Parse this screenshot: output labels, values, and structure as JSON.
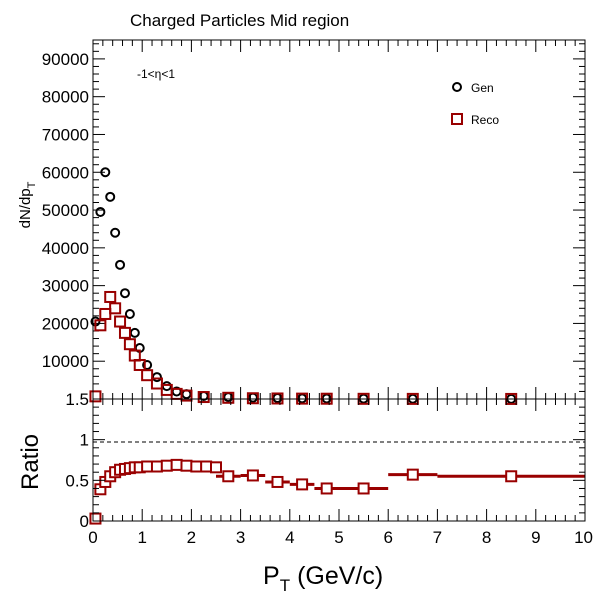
{
  "chart_data": [
    {
      "type": "scatter",
      "title": "Charged Particles Mid region",
      "annotation": "-1<η<1",
      "xlim": [
        0,
        10
      ],
      "ylim": [
        0,
        95000
      ],
      "ylabel": "dN/dp",
      "ylabel_sub": "T",
      "yticks": [
        {
          "v": 0,
          "label": "0"
        },
        {
          "v": 10000,
          "label": "10000"
        },
        {
          "v": 20000,
          "label": "20000"
        },
        {
          "v": 30000,
          "label": "30000"
        },
        {
          "v": 40000,
          "label": "40000"
        },
        {
          "v": 50000,
          "label": "50000"
        },
        {
          "v": 60000,
          "label": "60000"
        },
        {
          "v": 70000,
          "label": "70000"
        },
        {
          "v": 80000,
          "label": "80000"
        },
        {
          "v": 90000,
          "label": "90000"
        }
      ],
      "legend": [
        {
          "label": "Gen",
          "marker": "circle",
          "color": "#000000"
        },
        {
          "label": "Reco",
          "marker": "square",
          "color": "#990000"
        }
      ],
      "series": [
        {
          "name": "Gen",
          "marker": "circle",
          "color": "#000000",
          "x": [
            0.05,
            0.15,
            0.25,
            0.35,
            0.45,
            0.55,
            0.65,
            0.75,
            0.85,
            0.95,
            1.1,
            1.3,
            1.5,
            1.7,
            1.9,
            2.25,
            2.75,
            3.25,
            3.75,
            4.25,
            4.75,
            5.5,
            6.5,
            8.5
          ],
          "y": [
            20500,
            49500,
            60000,
            53500,
            44000,
            35500,
            28000,
            22500,
            17500,
            13500,
            9000,
            5800,
            3400,
            2000,
            1300,
            800,
            500,
            350,
            250,
            180,
            130,
            90,
            50,
            25
          ]
        },
        {
          "name": "Reco",
          "marker": "square",
          "color": "#990000",
          "x": [
            0.05,
            0.15,
            0.25,
            0.35,
            0.45,
            0.55,
            0.65,
            0.75,
            0.85,
            0.95,
            1.1,
            1.3,
            1.5,
            1.7,
            1.9,
            2.25,
            2.75,
            3.25,
            3.75,
            4.25,
            4.75,
            5.5,
            6.5,
            8.5
          ],
          "y": [
            700,
            19500,
            22500,
            27000,
            24000,
            20500,
            17500,
            14500,
            11500,
            9000,
            6300,
            4100,
            2400,
            1350,
            900,
            520,
            320,
            200,
            140,
            100,
            75,
            50,
            30,
            15
          ]
        }
      ]
    },
    {
      "type": "scatter",
      "xlabel": "P",
      "xlabel_sub": "T",
      "xlabel_unit": "(GeV/c)",
      "ylabel": "Ratio",
      "xlim": [
        0,
        10
      ],
      "ylim": [
        0,
        1.5
      ],
      "reference_line": 1,
      "xticks": [
        {
          "v": 0,
          "label": "0"
        },
        {
          "v": 1,
          "label": "1"
        },
        {
          "v": 2,
          "label": "2"
        },
        {
          "v": 3,
          "label": "3"
        },
        {
          "v": 4,
          "label": "4"
        },
        {
          "v": 5,
          "label": "5"
        },
        {
          "v": 6,
          "label": "6"
        },
        {
          "v": 7,
          "label": "7"
        },
        {
          "v": 8,
          "label": "8"
        },
        {
          "v": 9,
          "label": "9"
        },
        {
          "v": 10,
          "label": "10"
        }
      ],
      "yticks": [
        {
          "v": 0,
          "label": "0"
        },
        {
          "v": 0.5,
          "label": "0.5"
        },
        {
          "v": 1,
          "label": "1"
        },
        {
          "v": 1.5,
          "label": "1.5"
        }
      ],
      "series": [
        {
          "name": "Ratio",
          "marker": "square",
          "color": "#990000",
          "points": [
            {
              "x": 0.05,
              "y": 0.03,
              "xerr": 0.05
            },
            {
              "x": 0.15,
              "y": 0.39,
              "xerr": 0.05
            },
            {
              "x": 0.25,
              "y": 0.48,
              "xerr": 0.05
            },
            {
              "x": 0.35,
              "y": 0.55,
              "xerr": 0.05
            },
            {
              "x": 0.45,
              "y": 0.6,
              "xerr": 0.05
            },
            {
              "x": 0.55,
              "y": 0.63,
              "xerr": 0.05
            },
            {
              "x": 0.65,
              "y": 0.64,
              "xerr": 0.05
            },
            {
              "x": 0.75,
              "y": 0.65,
              "xerr": 0.05
            },
            {
              "x": 0.85,
              "y": 0.66,
              "xerr": 0.05
            },
            {
              "x": 0.95,
              "y": 0.66,
              "xerr": 0.05
            },
            {
              "x": 1.1,
              "y": 0.67,
              "xerr": 0.1
            },
            {
              "x": 1.3,
              "y": 0.67,
              "xerr": 0.1
            },
            {
              "x": 1.5,
              "y": 0.68,
              "xerr": 0.1
            },
            {
              "x": 1.7,
              "y": 0.69,
              "xerr": 0.1
            },
            {
              "x": 1.9,
              "y": 0.68,
              "xerr": 0.1
            },
            {
              "x": 2.1,
              "y": 0.67,
              "xerr": 0.1
            },
            {
              "x": 2.3,
              "y": 0.67,
              "xerr": 0.1
            },
            {
              "x": 2.5,
              "y": 0.66,
              "xerr": 0.1
            },
            {
              "x": 2.75,
              "y": 0.55,
              "xerr": 0.25
            },
            {
              "x": 3.25,
              "y": 0.56,
              "xerr": 0.25
            },
            {
              "x": 3.75,
              "y": 0.48,
              "xerr": 0.25
            },
            {
              "x": 4.25,
              "y": 0.45,
              "xerr": 0.25
            },
            {
              "x": 4.75,
              "y": 0.4,
              "xerr": 0.25
            },
            {
              "x": 5.5,
              "y": 0.4,
              "xerr": 0.5
            },
            {
              "x": 6.5,
              "y": 0.57,
              "xerr": 0.5
            },
            {
              "x": 8.5,
              "y": 0.55,
              "xerr": 1.5
            }
          ]
        }
      ]
    }
  ]
}
